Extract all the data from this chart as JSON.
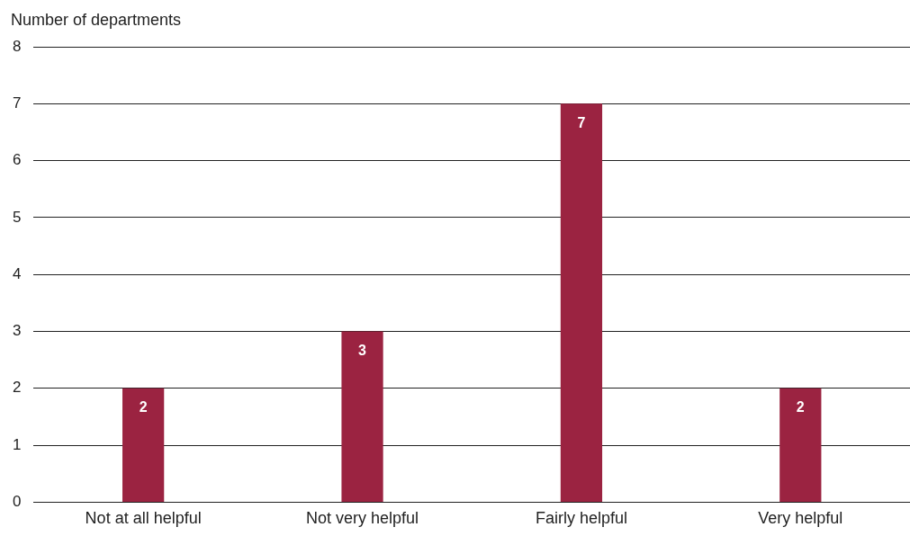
{
  "chart_data": {
    "type": "bar",
    "ylabel": "Number of departments",
    "categories": [
      "Not at all helpful",
      "Not very helpful",
      "Fairly helpful",
      "Very helpful"
    ],
    "values": [
      2,
      3,
      7,
      2
    ],
    "color": "#9b2341",
    "ylim": [
      0,
      8
    ],
    "yticks": [
      0,
      1,
      2,
      3,
      4,
      5,
      6,
      7,
      8
    ],
    "grid": "y",
    "data_labels": true
  }
}
